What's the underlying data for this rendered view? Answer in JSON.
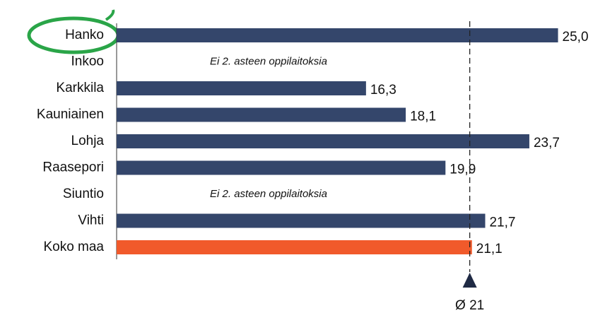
{
  "chart_data": {
    "type": "hbar",
    "categories": [
      "Hanko",
      "Inkoo",
      "Karkkila",
      "Kauniainen",
      "Lohja",
      "Raasepori",
      "Siuntio",
      "Vihti",
      "Koko maa"
    ],
    "values": [
      25.0,
      null,
      16.3,
      18.1,
      23.7,
      19.9,
      null,
      21.7,
      21.1
    ],
    "value_labels": [
      "25,0",
      null,
      "16,3",
      "18,1",
      "23,7",
      "19,9",
      null,
      "21,7",
      "21,1"
    ],
    "colors": [
      "#34466b",
      "#34466b",
      "#34466b",
      "#34466b",
      "#34466b",
      "#34466b",
      "#34466b",
      "#34466b",
      "#f15a2b"
    ],
    "annotations": [
      "Ei 2. asteen oppilaitoksia",
      "Ei 2. asteen oppilaitoksia"
    ],
    "reference_line": {
      "value": 21,
      "label": "Ø 21"
    },
    "xlim": [
      5,
      27
    ]
  }
}
